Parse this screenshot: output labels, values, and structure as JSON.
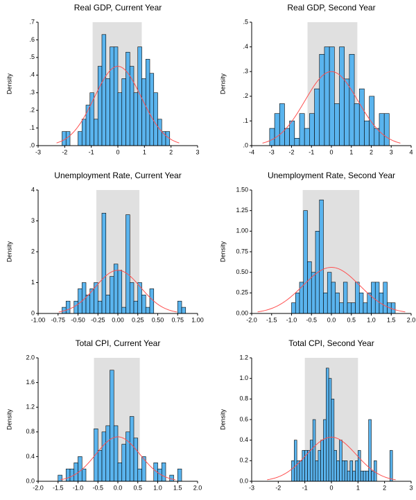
{
  "chart_data": [
    {
      "type": "histogram",
      "title": "Real GDP, Current Year",
      "ylabel": "Density",
      "color": "#5ab4ee",
      "bins": [
        -2.1,
        -1.95,
        -1.8,
        -1.65,
        -1.5,
        -1.35,
        -1.2,
        -1.05,
        -0.9,
        -0.75,
        -0.6,
        -0.45,
        -0.3,
        -0.15,
        0,
        0.15,
        0.3,
        0.45,
        0.6,
        0.75,
        0.9,
        1.05,
        1.2,
        1.35,
        1.5,
        1.65,
        1.8,
        1.95
      ],
      "values": [
        0.08,
        0.08,
        0,
        0,
        0.08,
        0.15,
        0.23,
        0.3,
        0.15,
        0.45,
        0.63,
        0.38,
        0.56,
        0.56,
        0.3,
        0.38,
        0.53,
        0.45,
        0.3,
        0.56,
        0.38,
        0.49,
        0.41,
        0.3,
        0.15,
        0.08,
        0.08
      ],
      "xlim": [
        -3,
        3
      ],
      "xticks": [
        -3,
        -2,
        -1,
        0,
        1,
        2,
        3
      ],
      "ylim": [
        0,
        0.7
      ],
      "yticks": [
        {
          "value": 0,
          "label": ".0"
        },
        {
          "value": 0.1,
          "label": ".1"
        },
        {
          "value": 0.2,
          "label": ".2"
        },
        {
          "value": 0.3,
          "label": ".3"
        },
        {
          "value": 0.4,
          "label": ".4"
        },
        {
          "value": 0.5,
          "label": ".5"
        },
        {
          "value": 0.6,
          "label": ".6"
        },
        {
          "value": 0.7,
          "label": ".7"
        }
      ],
      "shade": {
        "range": [
          -0.95,
          0.9
        ],
        "color": "#e0e0e0"
      },
      "normal_curve": {
        "mean": 0,
        "sd": 0.887,
        "color": "#ff5050"
      }
    },
    {
      "type": "histogram",
      "title": "Real GDP, Second Year",
      "ylabel": "Density",
      "color": "#5ab4ee",
      "bins": [
        -3.1,
        -2.85,
        -2.6,
        -2.35,
        -2.1,
        -1.85,
        -1.6,
        -1.35,
        -1.1,
        -0.85,
        -0.6,
        -0.35,
        -0.1,
        0.15,
        0.4,
        0.65,
        0.9,
        1.15,
        1.4,
        1.65,
        1.9,
        2.15,
        2.4,
        2.65,
        2.9
      ],
      "values": [
        0.07,
        0.13,
        0.17,
        0.07,
        0.1,
        0.03,
        0.13,
        0.07,
        0.13,
        0.23,
        0.37,
        0.4,
        0.4,
        0.17,
        0.4,
        0.27,
        0.37,
        0.17,
        0.23,
        0.1,
        0.2,
        0.07,
        0.13,
        0.13
      ],
      "xlim": [
        -4,
        4
      ],
      "xticks": [
        -4,
        -3,
        -2,
        -1,
        0,
        1,
        2,
        3,
        4
      ],
      "ylim": [
        0,
        0.5
      ],
      "yticks": [
        {
          "value": 0,
          "label": ".0"
        },
        {
          "value": 0.1,
          "label": ".1"
        },
        {
          "value": 0.2,
          "label": ".2"
        },
        {
          "value": 0.3,
          "label": ".3"
        },
        {
          "value": 0.4,
          "label": ".4"
        },
        {
          "value": 0.5,
          "label": ".5"
        }
      ],
      "shade": {
        "range": [
          -1.2,
          1.3
        ],
        "color": "#e0e0e0"
      },
      "normal_curve": {
        "mean": 0,
        "sd": 1.33,
        "color": "#ff5050"
      }
    },
    {
      "type": "histogram",
      "title": "Unemployment Rate, Current Year",
      "ylabel": "Density",
      "color": "#5ab4ee",
      "bins": [
        -0.7,
        -0.65,
        -0.6,
        -0.55,
        -0.5,
        -0.45,
        -0.4,
        -0.35,
        -0.3,
        -0.25,
        -0.2,
        -0.15,
        -0.1,
        -0.05,
        0,
        0.05,
        0.1,
        0.15,
        0.2,
        0.25,
        0.3,
        0.35,
        0.4,
        0.45,
        0.5,
        0.55,
        0.6,
        0.65,
        0.7,
        0.75,
        0.8,
        0.85
      ],
      "values": [
        0.2,
        0.4,
        0,
        0.4,
        0.8,
        1,
        0.6,
        0.8,
        1,
        0.4,
        3.25,
        0.6,
        1.2,
        1.6,
        1.4,
        0.2,
        3.2,
        1,
        0.4,
        1,
        0.6,
        0.2,
        0.8,
        0,
        0,
        0,
        0,
        0,
        0,
        0.4,
        0.2
      ],
      "xlim": [
        -1,
        1
      ],
      "xticks": [
        {
          "value": -1,
          "label": "-1.00"
        },
        {
          "value": -0.75,
          "label": "-0.75"
        },
        {
          "value": -0.5,
          "label": "-0.50"
        },
        {
          "value": -0.25,
          "label": "-0.25"
        },
        {
          "value": 0,
          "label": "0.00"
        },
        {
          "value": 0.25,
          "label": "0.25"
        },
        {
          "value": 0.5,
          "label": "0.50"
        },
        {
          "value": 0.75,
          "label": "0.75"
        },
        {
          "value": 1,
          "label": "1.00"
        }
      ],
      "ylim": [
        0,
        4
      ],
      "yticks": [
        0,
        1,
        2,
        3,
        4
      ],
      "shade": {
        "range": [
          -0.27,
          0.27
        ],
        "color": "#e0e0e0"
      },
      "normal_curve": {
        "mean": 0,
        "sd": 0.285,
        "color": "#ff5050"
      }
    },
    {
      "type": "histogram",
      "title": "Unemployment Rate, Second Year",
      "ylabel": "Density",
      "color": "#5ab4ee",
      "bins": [
        -1.0,
        -0.9,
        -0.8,
        -0.7,
        -0.6,
        -0.5,
        -0.4,
        -0.3,
        -0.2,
        -0.1,
        0,
        0.1,
        0.2,
        0.3,
        0.4,
        0.5,
        0.6,
        0.7,
        0.8,
        0.9,
        1.0,
        1.1,
        1.2,
        1.3,
        1.4,
        1.5,
        1.6
      ],
      "values": [
        0.13,
        0.25,
        0.38,
        1.25,
        0.63,
        0.5,
        1.0,
        1.38,
        0.25,
        0.5,
        0.38,
        0.25,
        0.13,
        0.38,
        0.13,
        0.13,
        0.38,
        0.25,
        0.13,
        0.25,
        0.38,
        0.38,
        0.25,
        0.38,
        0.13,
        0.13
      ],
      "xlim": [
        -2,
        2
      ],
      "xticks": [
        {
          "value": -2,
          "label": "-2.0"
        },
        -1.5,
        {
          "value": -1,
          "label": "-1.0"
        },
        -0.5,
        {
          "value": 0,
          "label": "0.0"
        },
        0.5,
        {
          "value": 1,
          "label": "1.0"
        },
        1.5,
        {
          "value": 2,
          "label": "2.0"
        }
      ],
      "ylim": [
        0,
        1.5
      ],
      "yticks": [
        {
          "value": 0,
          "label": "0.00"
        },
        {
          "value": 0.25,
          "label": "0.25"
        },
        {
          "value": 0.5,
          "label": "0.50"
        },
        {
          "value": 0.75,
          "label": "0.75"
        },
        {
          "value": 1,
          "label": "1.00"
        },
        {
          "value": 1.25,
          "label": "1.25"
        },
        {
          "value": 1.5,
          "label": "1.50"
        }
      ],
      "shade": {
        "range": [
          -0.72,
          0.7
        ],
        "color": "#e0e0e0"
      },
      "normal_curve": {
        "mean": 0,
        "sd": 0.712,
        "color": "#ff5050"
      }
    },
    {
      "type": "histogram",
      "title": "Total CPI, Current Year",
      "ylabel": "Density",
      "color": "#5ab4ee",
      "bins": [
        -1.5,
        -1.4,
        -1.3,
        -1.2,
        -1.1,
        -1.0,
        -0.9,
        -0.8,
        -0.7,
        -0.6,
        -0.5,
        -0.4,
        -0.3,
        -0.2,
        -0.1,
        0,
        0.1,
        0.2,
        0.3,
        0.4,
        0.5,
        0.6,
        0.7,
        0.8,
        0.9,
        1.0,
        1.1,
        1.2,
        1.3,
        1.4,
        1.5,
        1.6,
        1.7
      ],
      "values": [
        0.1,
        0,
        0.2,
        0.2,
        0.3,
        0.4,
        0.2,
        0,
        0,
        0.85,
        0.5,
        0.8,
        0.9,
        1.8,
        0.9,
        0.3,
        0.6,
        0.8,
        1.05,
        0.7,
        0.2,
        0.4,
        0,
        0,
        0.3,
        0.2,
        0.3,
        0,
        0.1,
        0,
        0.2,
        0
      ],
      "xlim": [
        -2,
        2
      ],
      "xticks": [
        {
          "value": -2,
          "label": "-2.0"
        },
        -1.5,
        {
          "value": -1,
          "label": "-1.0"
        },
        -0.5,
        {
          "value": 0,
          "label": "0.0"
        },
        0.5,
        {
          "value": 1,
          "label": "1.0"
        },
        1.5,
        {
          "value": 2,
          "label": "2.0"
        }
      ],
      "ylim": [
        0,
        2
      ],
      "yticks": [
        {
          "value": 0,
          "label": "0.0"
        },
        0.4,
        0.8,
        1.2,
        1.6,
        {
          "value": 2,
          "label": "2.0"
        }
      ],
      "shade": {
        "range": [
          -0.6,
          0.55
        ],
        "color": "#e0e0e0"
      },
      "normal_curve": {
        "mean": 0,
        "sd": 0.554,
        "color": "#ff5050"
      }
    },
    {
      "type": "histogram",
      "title": "Total CPI, Second Year",
      "ylabel": "Density",
      "color": "#5ab4ee",
      "bins": [
        -1.5,
        -1.4,
        -1.3,
        -1.2,
        -1.1,
        -1.0,
        -0.9,
        -0.8,
        -0.7,
        -0.6,
        -0.5,
        -0.4,
        -0.3,
        -0.2,
        -0.1,
        0,
        0.1,
        0.2,
        0.3,
        0.4,
        0.5,
        0.6,
        0.7,
        0.8,
        0.9,
        1.0,
        1.1,
        1.2,
        1.3,
        1.4,
        1.5,
        1.6,
        1.7,
        1.8,
        1.9,
        2.0,
        2.1,
        2.2,
        2.3
      ],
      "values": [
        0.2,
        0.4,
        0.2,
        0.2,
        0.3,
        0.3,
        0.3,
        0.4,
        0.6,
        0.2,
        0.3,
        0.4,
        0.6,
        1.1,
        1.0,
        0.8,
        0.3,
        0.2,
        0.4,
        0.2,
        0.2,
        0.1,
        0.2,
        0.1,
        0.2,
        0.3,
        0.1,
        0.1,
        0.1,
        0.6,
        0.1,
        0.2,
        0,
        0,
        0,
        0,
        0,
        0.3
      ],
      "xlim": [
        -3,
        3
      ],
      "xticks": [
        -3,
        -2,
        -1,
        0,
        1,
        2,
        3
      ],
      "ylim": [
        0,
        1.2
      ],
      "yticks": [
        {
          "value": 0,
          "label": "0.0"
        },
        0.2,
        0.4,
        0.6,
        0.8,
        {
          "value": 1,
          "label": "1.0"
        },
        1.2
      ],
      "shade": {
        "range": [
          -1.0,
          1.0
        ],
        "color": "#e0e0e0"
      },
      "normal_curve": {
        "mean": 0,
        "sd": 0.93,
        "color": "#ff5050"
      }
    }
  ]
}
